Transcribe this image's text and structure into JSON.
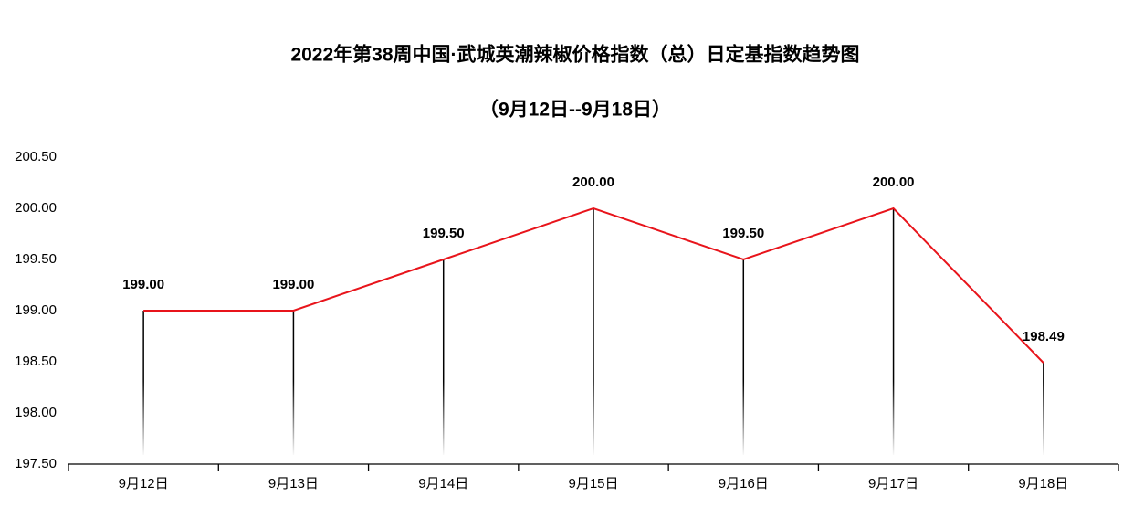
{
  "chart_data": {
    "type": "line",
    "title": "2022年第38周中国·武城英潮辣椒价格指数（总）日定基指数趋势图",
    "subtitle": "（9月12日--9月18日）",
    "categories": [
      "9月12日",
      "9月13日",
      "9月14日",
      "9月15日",
      "9月16日",
      "9月17日",
      "9月18日"
    ],
    "values": [
      199.0,
      199.0,
      199.5,
      200.0,
      199.5,
      200.0,
      198.49
    ],
    "value_labels": [
      "199.00",
      "199.00",
      "199.50",
      "200.00",
      "199.50",
      "200.00",
      "198.49"
    ],
    "color": "#e8141b",
    "ylim": [
      197.5,
      200.5
    ],
    "yticks": [
      {
        "value": 197.5,
        "label": "197.50"
      },
      {
        "value": 198,
        "label": "198.00"
      },
      {
        "value": 198.5,
        "label": "198.50"
      },
      {
        "value": 199,
        "label": "199.00"
      },
      {
        "value": 199.5,
        "label": "199.50"
      },
      {
        "value": 200,
        "label": "200.00"
      },
      {
        "value": 200.5,
        "label": "200.50"
      }
    ],
    "grid": false
  }
}
